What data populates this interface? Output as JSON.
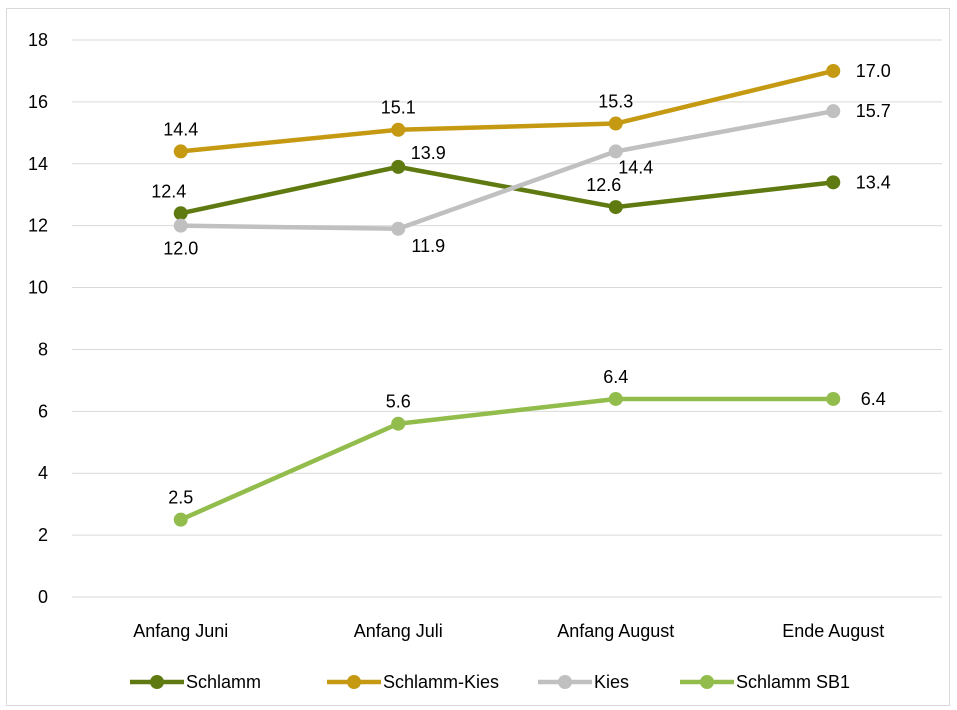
{
  "chart_data": {
    "type": "line",
    "categories": [
      "Anfang Juni",
      "Anfang Juli",
      "Anfang August",
      "Ende August"
    ],
    "ylim": [
      0,
      18
    ],
    "yticks": [
      0,
      2,
      4,
      6,
      8,
      10,
      12,
      14,
      16,
      18
    ],
    "grid": true,
    "legend_position": "bottom",
    "data_labels": true,
    "series": [
      {
        "name": "Schlamm",
        "color": "#5f7a10",
        "values": [
          12.4,
          13.9,
          12.6,
          13.4
        ],
        "labels": [
          "12.4",
          "13.9",
          "12.6",
          "13.4"
        ]
      },
      {
        "name": "Schlamm-Kies",
        "color": "#c59a12",
        "values": [
          14.4,
          15.1,
          15.3,
          17.0
        ],
        "labels": [
          "14.4",
          "15.1",
          "15.3",
          "17.0"
        ]
      },
      {
        "name": "Kies",
        "color": "#c0c0c0",
        "values": [
          12.0,
          11.9,
          14.4,
          15.7
        ],
        "labels": [
          "12.0",
          "11.9",
          "14.4",
          "15.7"
        ]
      },
      {
        "name": "Schlamm SB1",
        "color": "#92bc4c",
        "values": [
          2.5,
          5.6,
          6.4,
          6.4
        ],
        "labels": [
          "2.5",
          "5.6",
          "6.4",
          "6.4"
        ]
      }
    ]
  }
}
